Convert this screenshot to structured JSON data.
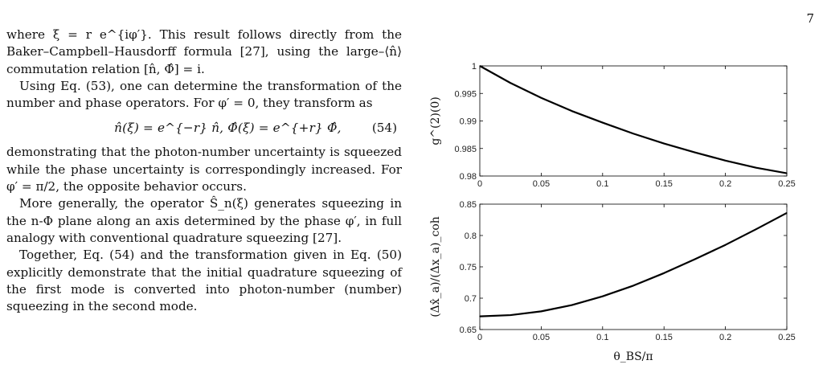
{
  "page": {
    "number": "7"
  },
  "text": {
    "p1": "where ξ = r e^{iφ′}. This result follows directly from the Baker–Campbell–Hausdorff formula [27], using the large–⟨n̂⟩ commutation relation [n̂, Φ̂] = i.",
    "p2": "Using Eq. (53), one can determine the transformation of the number and phase operators. For φ′ = 0, they transform as",
    "eq54": "n̂(ξ) = e^{−r} n̂,        Φ̂(ξ) = e^{+r} Φ̂,",
    "eq54_number": "(54)",
    "p3": "demonstrating that the photon-number uncertainty is squeezed while the phase uncertainty is correspondingly increased. For φ′ = π/2, the opposite behavior occurs.",
    "p4": "More generally, the operator Ŝ_n(ξ) generates squeezing in the n-Φ plane along an axis determined by the phase φ′, in full analogy with conventional quadrature squeezing [27].",
    "p5": "Together, Eq. (54) and the transformation given in Eq. (50) explicitly demonstrate that the initial quadrature squeezing of the first mode is converted into photon-number (number) squeezing in the second mode."
  },
  "chart_data": [
    {
      "type": "line",
      "xlabel": "",
      "ylabel": "g^(2)(0)",
      "xlim": [
        0,
        0.25
      ],
      "ylim": [
        0.98,
        1.0
      ],
      "xticks": [
        "0",
        "0.05",
        "0.1",
        "0.15",
        "0.2",
        "0.25"
      ],
      "yticks": [
        "1",
        "0.995",
        "0.99",
        "0.985",
        "0.98"
      ],
      "series": [
        {
          "x": [
            0,
            0.025,
            0.05,
            0.075,
            0.1,
            0.125,
            0.15,
            0.175,
            0.2,
            0.225,
            0.25
          ],
          "y": [
            1.0,
            0.9969,
            0.9942,
            0.9918,
            0.9897,
            0.9877,
            0.9859,
            0.9843,
            0.9828,
            0.9815,
            0.9805
          ]
        }
      ],
      "color": "#000000"
    },
    {
      "type": "line",
      "xlabel": "θ_BS/π",
      "ylabel": "(Δx̂_a)/(Δx_a)_coh",
      "xlim": [
        0,
        0.25
      ],
      "ylim": [
        0.65,
        0.85
      ],
      "xticks": [
        "0",
        "0.05",
        "0.1",
        "0.15",
        "0.2",
        "0.25"
      ],
      "yticks": [
        "0.85",
        "0.8",
        "0.75",
        "0.7",
        "0.65"
      ],
      "series": [
        {
          "x": [
            0,
            0.025,
            0.05,
            0.075,
            0.1,
            0.125,
            0.15,
            0.175,
            0.2,
            0.225,
            0.25
          ],
          "y": [
            0.671,
            0.673,
            0.679,
            0.689,
            0.703,
            0.72,
            0.74,
            0.762,
            0.785,
            0.81,
            0.836
          ]
        }
      ],
      "color": "#000000"
    }
  ]
}
